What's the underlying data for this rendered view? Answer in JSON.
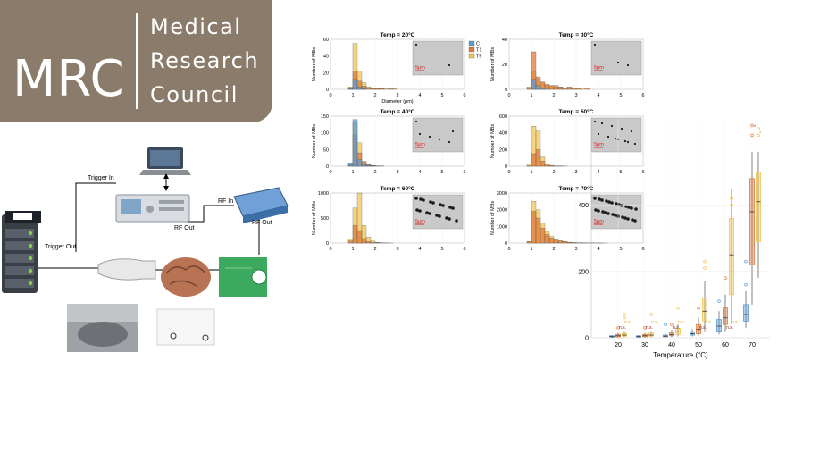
{
  "logo": {
    "abbr": "MRC",
    "line1": "Medical",
    "line2": "Research",
    "line3": "Council",
    "color": "#8a7b6b"
  },
  "setup": {
    "trigger_in": "Trigger In",
    "trigger_out": "Trigger Out",
    "rf_in": "RF In",
    "rf_out_1": "RF Out",
    "rf_out_2": "RF Out"
  },
  "histograms": {
    "colors": {
      "C": "#5b9bd5",
      "T1": "#e07b39",
      "T5": "#f0c654"
    },
    "legend": [
      "C",
      "T1",
      "T5"
    ],
    "ylabel": "Number of MBs",
    "xlabel": "Diameter (μm)",
    "scale_label": "5μm",
    "bin_width": 0.2,
    "panels": [
      {
        "title": "Temp = 20°C",
        "ymax": 60,
        "yticks": [
          0,
          20,
          40,
          60
        ],
        "C": [
          0,
          0,
          0,
          0,
          1,
          12,
          3,
          1,
          0,
          0,
          0,
          0,
          0,
          0,
          0,
          0,
          0,
          0,
          0,
          0,
          0,
          0,
          0,
          0,
          0,
          0,
          0,
          0,
          0,
          0
        ],
        "T1": [
          0,
          0,
          0,
          0,
          2,
          22,
          10,
          4,
          2,
          1,
          1,
          1,
          0,
          1,
          0,
          0,
          0,
          0,
          0,
          0,
          0,
          0,
          0,
          0,
          0,
          0,
          0,
          0,
          0,
          0
        ],
        "T5": [
          0,
          0,
          0,
          0,
          3,
          55,
          22,
          8,
          3,
          2,
          1,
          1,
          1,
          0,
          1,
          0,
          0,
          0,
          0,
          0,
          0,
          0,
          0,
          0,
          0,
          0,
          0,
          0,
          0,
          0
        ]
      },
      {
        "title": "Temp = 30°C",
        "ymax": 40,
        "yticks": [
          0,
          20,
          40
        ],
        "C": [
          0,
          0,
          0,
          0,
          0,
          8,
          3,
          1,
          0,
          0,
          0,
          0,
          0,
          0,
          0,
          0,
          0,
          0,
          0,
          0,
          0,
          0,
          0,
          0,
          0,
          0,
          0,
          0,
          0,
          0
        ],
        "T1": [
          0,
          0,
          0,
          0,
          1,
          30,
          10,
          6,
          4,
          3,
          3,
          2,
          1,
          2,
          1,
          1,
          0,
          1,
          0,
          0,
          0,
          0,
          0,
          0,
          0,
          0,
          0,
          0,
          0,
          0
        ],
        "T5": [
          0,
          0,
          0,
          0,
          2,
          14,
          8,
          5,
          3,
          3,
          2,
          2,
          1,
          1,
          1,
          1,
          1,
          0,
          0,
          0,
          0,
          0,
          0,
          0,
          0,
          0,
          0,
          0,
          0,
          0
        ]
      },
      {
        "title": "Temp = 40°C",
        "ymax": 150,
        "yticks": [
          0,
          50,
          100,
          150
        ],
        "C": [
          0,
          0,
          0,
          0,
          10,
          140,
          20,
          5,
          2,
          1,
          0,
          0,
          0,
          0,
          0,
          0,
          0,
          0,
          0,
          0,
          0,
          0,
          0,
          0,
          0,
          0,
          0,
          0,
          0,
          0
        ],
        "T1": [
          0,
          0,
          0,
          0,
          5,
          95,
          40,
          12,
          4,
          2,
          1,
          0,
          0,
          0,
          0,
          0,
          0,
          0,
          0,
          0,
          0,
          0,
          0,
          0,
          0,
          0,
          0,
          0,
          0,
          0
        ],
        "T5": [
          0,
          0,
          0,
          0,
          5,
          130,
          70,
          15,
          5,
          2,
          1,
          1,
          0,
          0,
          0,
          0,
          0,
          0,
          0,
          0,
          0,
          0,
          0,
          0,
          0,
          0,
          0,
          0,
          0,
          0
        ]
      },
      {
        "title": "Temp = 50°C",
        "ymax": 600,
        "yticks": [
          0,
          200,
          400,
          600
        ],
        "C": [
          0,
          0,
          0,
          0,
          0,
          0,
          0,
          0,
          0,
          0,
          0,
          0,
          0,
          0,
          0,
          0,
          0,
          0,
          0,
          0,
          0,
          0,
          0,
          0,
          0,
          0,
          0,
          0,
          0,
          0
        ],
        "T1": [
          0,
          0,
          0,
          0,
          5,
          150,
          200,
          60,
          15,
          5,
          2,
          1,
          0,
          0,
          0,
          0,
          0,
          0,
          0,
          0,
          0,
          0,
          0,
          0,
          0,
          0,
          0,
          0,
          0,
          0
        ],
        "T5": [
          0,
          0,
          0,
          0,
          30,
          480,
          420,
          110,
          30,
          10,
          4,
          2,
          1,
          0,
          0,
          0,
          0,
          0,
          0,
          0,
          0,
          0,
          0,
          0,
          0,
          0,
          0,
          0,
          0,
          0
        ]
      },
      {
        "title": "Temp = 60°C",
        "ymax": 1000,
        "yticks": [
          0,
          500,
          1000
        ],
        "C": [
          0,
          0,
          0,
          0,
          0,
          0,
          0,
          0,
          0,
          0,
          0,
          0,
          0,
          0,
          0,
          0,
          0,
          0,
          0,
          0,
          0,
          0,
          0,
          0,
          0,
          0,
          0,
          0,
          0,
          0
        ],
        "T1": [
          0,
          0,
          0,
          0,
          40,
          350,
          250,
          90,
          30,
          10,
          5,
          2,
          1,
          0,
          0,
          0,
          0,
          0,
          0,
          0,
          0,
          0,
          0,
          0,
          0,
          0,
          0,
          0,
          0,
          0
        ],
        "T5": [
          0,
          0,
          0,
          0,
          80,
          700,
          1050,
          350,
          120,
          40,
          15,
          5,
          2,
          1,
          0,
          0,
          0,
          0,
          0,
          0,
          0,
          0,
          0,
          0,
          0,
          0,
          0,
          0,
          0,
          0
        ]
      },
      {
        "title": "Temp = 70°C",
        "ymax": 3000,
        "yticks": [
          0,
          1000,
          2000,
          3000
        ],
        "C": [
          0,
          0,
          0,
          0,
          0,
          0,
          0,
          0,
          0,
          0,
          0,
          0,
          0,
          0,
          0,
          0,
          0,
          0,
          0,
          0,
          0,
          0,
          0,
          0,
          0,
          0,
          0,
          0,
          0,
          0
        ],
        "T1": [
          0,
          0,
          0,
          0,
          80,
          1900,
          1500,
          900,
          500,
          300,
          180,
          110,
          70,
          40,
          25,
          15,
          10,
          5,
          3,
          2,
          1,
          0,
          0,
          0,
          0,
          0,
          0,
          0,
          0,
          0
        ],
        "T5": [
          0,
          0,
          0,
          0,
          100,
          2500,
          2000,
          1200,
          700,
          400,
          240,
          140,
          90,
          50,
          30,
          20,
          12,
          6,
          4,
          2,
          1,
          1,
          0,
          0,
          0,
          0,
          0,
          0,
          0,
          0
        ]
      }
    ]
  },
  "boxplot": {
    "xlabel": "Temperature (°C)",
    "categories": [
      "20",
      "30",
      "40",
      "50",
      "60",
      "70"
    ],
    "yticks": [
      0,
      200,
      400
    ],
    "ylim": [
      0,
      660
    ],
    "ns_label": "n.s.",
    "star": "*",
    "series": [
      {
        "name": "C",
        "color": "#5b9bd5",
        "boxes": [
          [
            0,
            2,
            4,
            6,
            8
          ],
          [
            0,
            2,
            4,
            6,
            8
          ],
          [
            1,
            3,
            5,
            8,
            12
          ],
          [
            4,
            8,
            12,
            18,
            26
          ],
          [
            10,
            20,
            35,
            55,
            80
          ],
          [
            30,
            50,
            70,
            100,
            140
          ]
        ],
        "outliers": [
          [],
          [],
          [
            40
          ],
          [],
          [
            110
          ],
          [
            230,
            160
          ]
        ]
      },
      {
        "name": "T1",
        "color": "#e07b39",
        "boxes": [
          [
            1,
            3,
            6,
            10,
            14
          ],
          [
            1,
            3,
            6,
            10,
            14
          ],
          [
            2,
            6,
            10,
            16,
            24
          ],
          [
            6,
            12,
            25,
            40,
            60
          ],
          [
            20,
            40,
            60,
            90,
            130
          ],
          [
            100,
            220,
            380,
            480,
            560
          ]
        ],
        "outliers": [
          [
            30
          ],
          [
            30
          ],
          [
            40
          ],
          [
            90
          ],
          [
            180
          ],
          [
            610,
            640
          ]
        ]
      },
      {
        "name": "T5",
        "color": "#f0c654",
        "boxes": [
          [
            2,
            5,
            8,
            14,
            20
          ],
          [
            2,
            5,
            8,
            14,
            20
          ],
          [
            4,
            10,
            18,
            28,
            40
          ],
          [
            20,
            50,
            80,
            120,
            170
          ],
          [
            40,
            130,
            250,
            360,
            450
          ],
          [
            180,
            290,
            410,
            500,
            560
          ]
        ],
        "outliers": [
          [
            60,
            70
          ],
          [
            70
          ],
          [
            90
          ],
          [
            210,
            230
          ],
          [
            400,
            420
          ],
          [
            610,
            630
          ]
        ]
      }
    ]
  }
}
